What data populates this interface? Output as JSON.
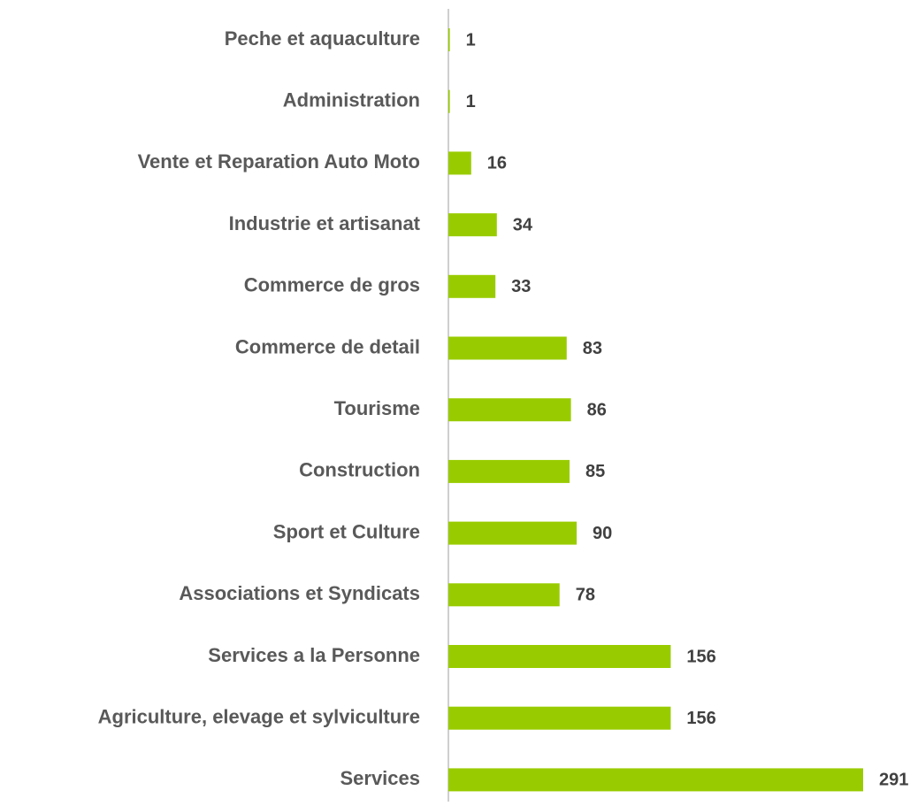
{
  "chart_data": {
    "type": "bar",
    "orientation": "horizontal",
    "categories": [
      "Peche et aquaculture",
      "Administration",
      "Vente et Reparation Auto Moto",
      "Industrie et artisanat",
      "Commerce de gros",
      "Commerce de detail",
      "Tourisme",
      "Construction",
      "Sport et Culture",
      "Associations et Syndicats",
      "Services a la Personne",
      "Agriculture, elevage et sylviculture",
      "Services"
    ],
    "values": [
      1,
      1,
      16,
      34,
      33,
      83,
      86,
      85,
      90,
      78,
      156,
      156,
      291
    ],
    "color": "#99cc00"
  }
}
